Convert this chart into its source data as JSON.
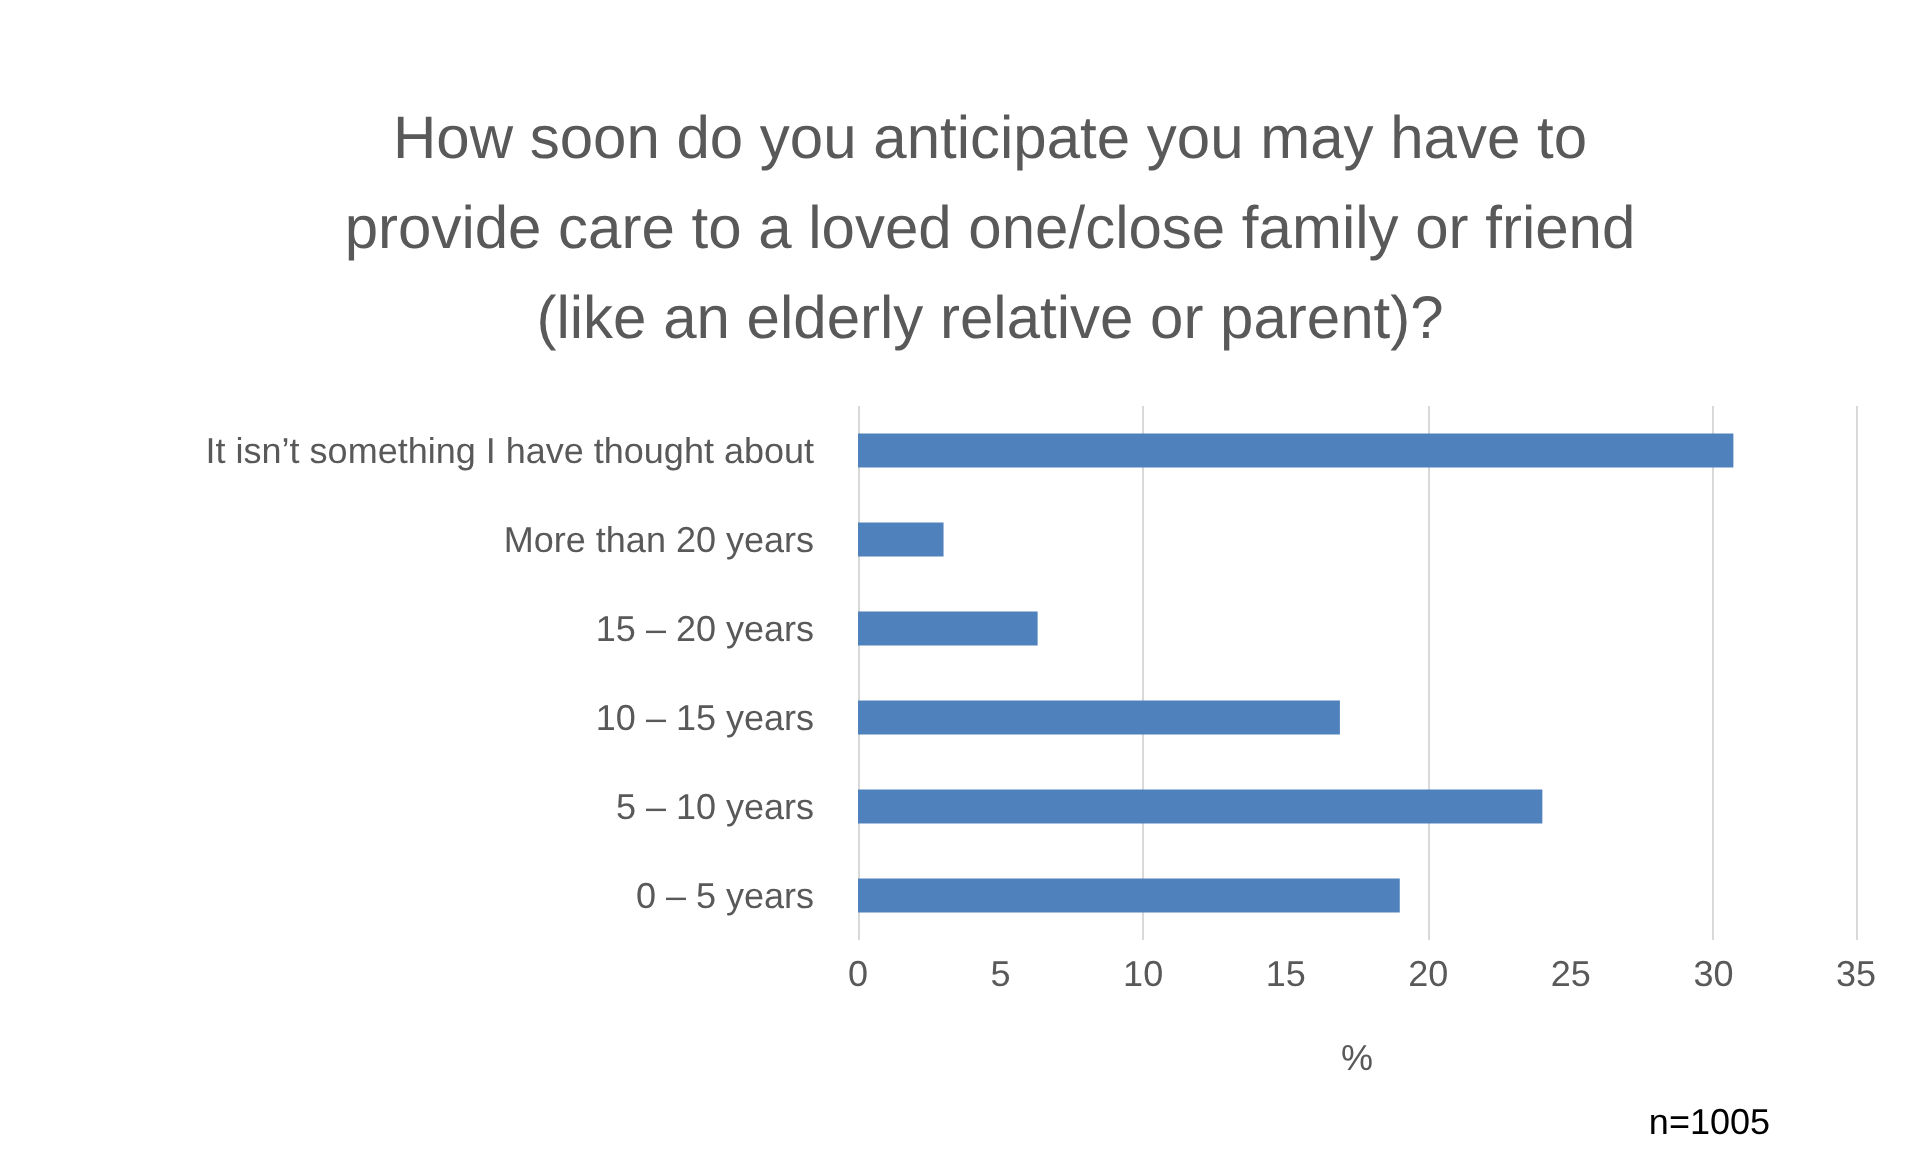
{
  "chart_data": {
    "type": "bar",
    "orientation": "horizontal",
    "title": "How soon do you anticipate you may have to\nprovide care to a loved one/close family or friend\n(like an elderly relative or parent)?",
    "categories": [
      "It isn’t something I have thought about",
      "More than 20 years",
      "15 – 20 years",
      "10 – 15 years",
      "5 – 10 years",
      "0 – 5 years"
    ],
    "values": [
      30.7,
      3,
      6.3,
      16.9,
      24,
      19
    ],
    "color": "#4f81bd",
    "xlim": [
      0,
      35
    ],
    "xticks": [
      0,
      5,
      10,
      15,
      20,
      25,
      30,
      35
    ],
    "xlabel": "%",
    "grid": "x",
    "annotations": [
      "n=1005"
    ]
  }
}
